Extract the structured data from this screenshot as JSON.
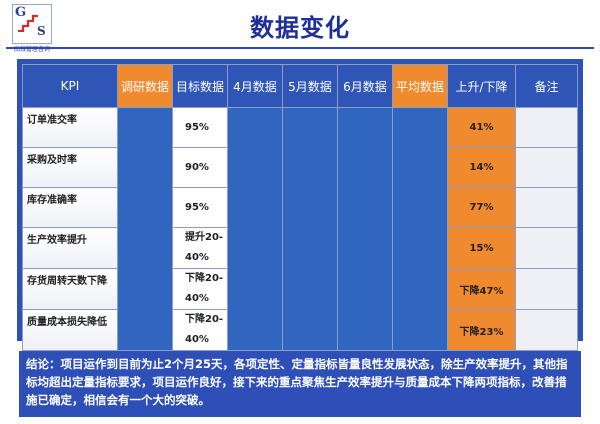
{
  "logo": {
    "letters": [
      "G",
      "S"
    ],
    "caption": "高效管理咨询"
  },
  "title": "数据变化",
  "table": {
    "headers": [
      "KPI",
      "调研数据",
      "目标数据",
      "4月数据",
      "5月数据",
      "6月数据",
      "平均数据",
      "上升/下降",
      "备注"
    ],
    "rows": [
      {
        "kpi": "订单准交率",
        "target": "95%",
        "change": "41%"
      },
      {
        "kpi": "采购及时率",
        "target": "90%",
        "change": "14%"
      },
      {
        "kpi": "库存准确率",
        "target": "95%",
        "change": "77%"
      },
      {
        "kpi": "生产效率提升",
        "target": "提升20-40%",
        "change": "15%"
      },
      {
        "kpi": "存货周转天数下降",
        "target": "下降20-40%",
        "change": "下降47%"
      },
      {
        "kpi": "质量成本损失降低",
        "target": "下降20-40%",
        "change": "下降23%"
      }
    ]
  },
  "conclusion": "结论：项目运作到目前为止2个月25天，各项定性、定量指标皆量良性发展状态，除生产效率提升，其他指标均超出定量指标要求，项目运作良好，接下来的重点聚焦生产效率提升与质量成本下降两项指标，改善措施已确定，相信会有一个大的突破。",
  "colors": {
    "blue": "#2f56b6",
    "orange": "#f08a2e",
    "title": "#1f2f9a"
  }
}
